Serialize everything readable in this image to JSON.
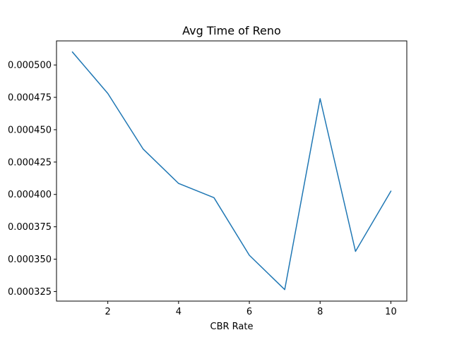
{
  "chart_data": {
    "type": "line",
    "title": "Avg Time of Reno",
    "xlabel": "CBR Rate",
    "ylabel": "",
    "xlim": [
      0.55,
      10.45
    ],
    "ylim": [
      0.0003176,
      0.0005186
    ],
    "xticks": [
      2,
      4,
      6,
      8,
      10
    ],
    "xtick_labels": [
      "2",
      "4",
      "6",
      "8",
      "10"
    ],
    "yticks": [
      0.000325,
      0.00035,
      0.000375,
      0.0004,
      0.000425,
      0.00045,
      0.000475,
      0.0005
    ],
    "ytick_labels": [
      "0.000325",
      "0.000350",
      "0.000375",
      "0.000400",
      "0.000425",
      "0.000450",
      "0.000475",
      "0.000500"
    ],
    "grid": false,
    "legend": "none",
    "series": [
      {
        "color": "#1f77b4",
        "x": [
          1,
          2,
          3,
          4,
          5,
          6,
          7,
          8,
          9,
          10
        ],
        "y": [
          0.00051,
          0.000478,
          0.000435,
          0.0004085,
          0.0003975,
          0.000353,
          0.0003265,
          0.000474,
          0.000356,
          0.0004025
        ]
      }
    ]
  }
}
